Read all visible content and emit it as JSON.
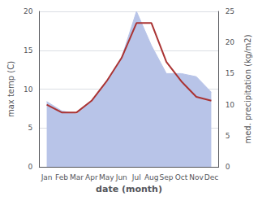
{
  "chart_data": {
    "type": "line",
    "xlabel": "date (month)",
    "ylabel": "max temp (C)",
    "y2label": "med. precipitation (kg/m2)",
    "categories": [
      "Jan",
      "Feb",
      "Mar",
      "Apr",
      "May",
      "Jun",
      "Jul",
      "Aug",
      "Sep",
      "Oct",
      "Nov",
      "Dec"
    ],
    "series": [
      {
        "type": "area",
        "axis": "y2",
        "color": "#b8c4e8",
        "values": [
          10.5,
          9.0,
          8.5,
          10.5,
          13.5,
          17.5,
          25.0,
          19.5,
          15.0,
          15.0,
          14.5,
          12.0
        ]
      },
      {
        "type": "line",
        "color": "#aa3333",
        "values": [
          8.0,
          7.0,
          7.0,
          8.5,
          11.0,
          14.0,
          18.5,
          18.5,
          13.5,
          11.0,
          9.0,
          8.5
        ]
      }
    ],
    "ylim": [
      0,
      20
    ],
    "yticks": [
      0,
      5,
      10,
      15,
      20
    ],
    "y2lim": [
      0,
      25
    ],
    "y2ticks": [
      0,
      5,
      10,
      15,
      20,
      25
    ],
    "grid": true
  }
}
